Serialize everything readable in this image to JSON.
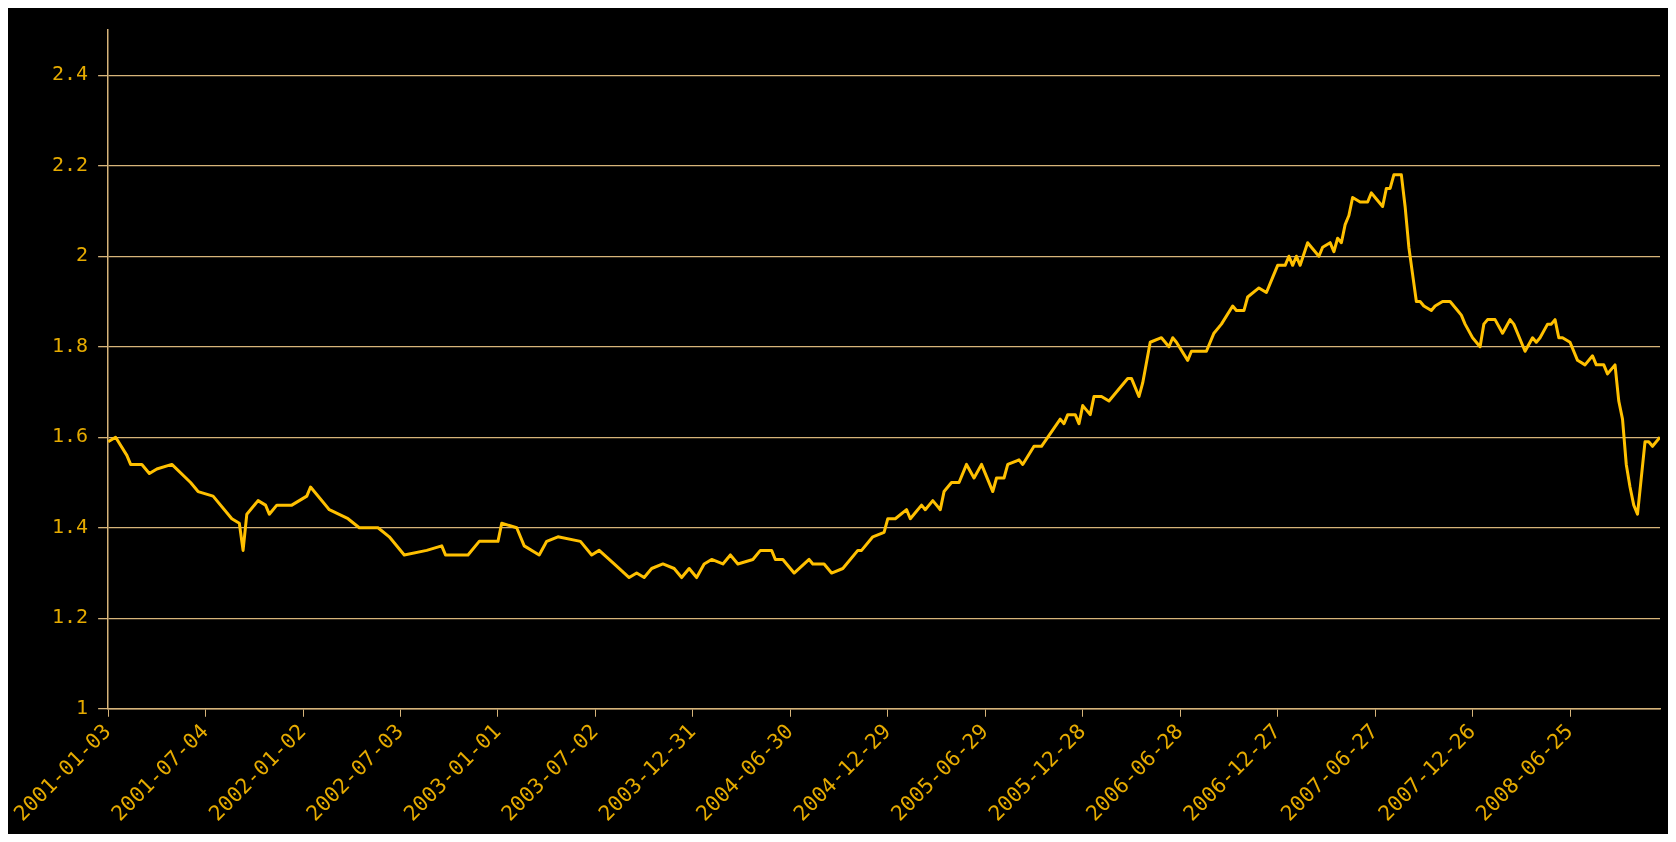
{
  "chart_data": {
    "type": "line",
    "x": [
      "2001-01-03",
      "2001-01-17",
      "2001-02-07",
      "2001-02-14",
      "2001-03-07",
      "2001-03-21",
      "2001-04-04",
      "2001-05-02",
      "2001-06-06",
      "2001-06-20",
      "2001-07-18",
      "2001-08-22",
      "2001-09-05",
      "2001-09-12",
      "2001-09-19",
      "2001-10-10",
      "2001-10-24",
      "2001-10-31",
      "2001-11-14",
      "2001-12-12",
      "2002-01-09",
      "2002-01-16",
      "2002-02-20",
      "2002-03-27",
      "2002-04-17",
      "2002-05-22",
      "2002-06-12",
      "2002-07-10",
      "2002-08-21",
      "2002-09-18",
      "2002-09-25",
      "2002-11-06",
      "2002-11-27",
      "2003-01-01",
      "2003-01-08",
      "2003-02-05",
      "2003-02-19",
      "2003-03-19",
      "2003-04-02",
      "2003-04-23",
      "2003-06-04",
      "2003-06-25",
      "2003-07-09",
      "2003-08-06",
      "2003-09-03",
      "2003-09-17",
      "2003-10-01",
      "2003-10-15",
      "2003-11-05",
      "2003-11-26",
      "2003-12-10",
      "2003-12-24",
      "2004-01-07",
      "2004-01-21",
      "2004-02-04",
      "2004-02-25",
      "2004-03-10",
      "2004-03-24",
      "2004-04-21",
      "2004-05-05",
      "2004-05-26",
      "2004-06-02",
      "2004-06-16",
      "2004-07-07",
      "2004-08-04",
      "2004-08-11",
      "2004-09-01",
      "2004-09-15",
      "2004-10-06",
      "2004-11-03",
      "2004-11-10",
      "2004-12-01",
      "2004-12-22",
      "2004-12-29",
      "2005-01-12",
      "2005-02-02",
      "2005-02-09",
      "2005-03-02",
      "2005-03-09",
      "2005-03-23",
      "2005-04-06",
      "2005-04-13",
      "2005-04-27",
      "2005-05-11",
      "2005-05-25",
      "2005-06-08",
      "2005-06-22",
      "2005-07-13",
      "2005-07-20",
      "2005-08-03",
      "2005-08-10",
      "2005-08-31",
      "2005-09-07",
      "2005-09-28",
      "2005-10-12",
      "2005-11-16",
      "2005-11-23",
      "2005-11-30",
      "2005-12-14",
      "2005-12-21",
      "2005-12-28",
      "2006-01-11",
      "2006-01-18",
      "2006-02-01",
      "2006-02-15",
      "2006-03-01",
      "2006-03-22",
      "2006-03-29",
      "2006-04-12",
      "2006-04-19",
      "2006-05-03",
      "2006-05-24",
      "2006-06-07",
      "2006-06-14",
      "2006-06-21",
      "2006-07-12",
      "2006-07-19",
      "2006-08-16",
      "2006-08-30",
      "2006-09-13",
      "2006-10-04",
      "2006-10-11",
      "2006-10-25",
      "2006-11-01",
      "2006-11-22",
      "2006-12-06",
      "2006-12-27",
      "2007-01-10",
      "2007-01-17",
      "2007-01-24",
      "2007-01-31",
      "2007-02-07",
      "2007-02-21",
      "2007-03-07",
      "2007-03-14",
      "2007-03-21",
      "2007-04-04",
      "2007-04-11",
      "2007-04-18",
      "2007-04-25",
      "2007-05-02",
      "2007-05-09",
      "2007-05-16",
      "2007-05-30",
      "2007-06-06",
      "2007-06-13",
      "2007-06-20",
      "2007-06-27",
      "2007-07-11",
      "2007-07-18",
      "2007-07-25",
      "2007-08-01",
      "2007-08-15",
      "2007-08-22",
      "2007-08-29",
      "2007-09-05",
      "2007-09-12",
      "2007-09-19",
      "2007-09-26",
      "2007-10-10",
      "2007-10-17",
      "2007-10-31",
      "2007-11-14",
      "2007-11-28",
      "2007-12-05",
      "2007-12-12",
      "2007-12-26",
      "2008-01-09",
      "2008-01-16",
      "2008-01-23",
      "2008-02-06",
      "2008-02-20",
      "2008-03-05",
      "2008-03-12",
      "2008-04-02",
      "2008-04-16",
      "2008-04-23",
      "2008-04-30",
      "2008-05-14",
      "2008-05-21",
      "2008-05-28",
      "2008-06-04",
      "2008-06-11",
      "2008-06-25",
      "2008-07-09",
      "2008-07-23",
      "2008-08-06",
      "2008-08-13",
      "2008-08-27",
      "2008-09-03",
      "2008-09-17",
      "2008-09-24",
      "2008-10-01",
      "2008-10-08",
      "2008-10-15",
      "2008-10-22",
      "2008-10-29",
      "2008-11-12",
      "2008-11-19",
      "2008-11-26",
      "2008-12-10"
    ],
    "series": [
      {
        "color": "#ffc000",
        "values": [
          1.59,
          1.6,
          1.56,
          1.54,
          1.54,
          1.52,
          1.53,
          1.54,
          1.5,
          1.48,
          1.47,
          1.42,
          1.41,
          1.35,
          1.43,
          1.46,
          1.45,
          1.43,
          1.45,
          1.45,
          1.47,
          1.49,
          1.44,
          1.42,
          1.4,
          1.4,
          1.38,
          1.34,
          1.35,
          1.36,
          1.34,
          1.34,
          1.37,
          1.37,
          1.41,
          1.4,
          1.36,
          1.34,
          1.37,
          1.38,
          1.37,
          1.34,
          1.35,
          1.32,
          1.29,
          1.3,
          1.29,
          1.31,
          1.32,
          1.31,
          1.29,
          1.31,
          1.29,
          1.32,
          1.33,
          1.32,
          1.34,
          1.32,
          1.33,
          1.35,
          1.35,
          1.33,
          1.33,
          1.3,
          1.33,
          1.32,
          1.32,
          1.3,
          1.31,
          1.35,
          1.35,
          1.38,
          1.39,
          1.42,
          1.42,
          1.44,
          1.42,
          1.45,
          1.44,
          1.46,
          1.44,
          1.48,
          1.5,
          1.5,
          1.54,
          1.51,
          1.54,
          1.48,
          1.51,
          1.51,
          1.54,
          1.55,
          1.54,
          1.58,
          1.58,
          1.64,
          1.63,
          1.65,
          1.65,
          1.63,
          1.67,
          1.65,
          1.69,
          1.69,
          1.68,
          1.7,
          1.73,
          1.73,
          1.69,
          1.72,
          1.81,
          1.82,
          1.8,
          1.82,
          1.81,
          1.77,
          1.79,
          1.79,
          1.83,
          1.85,
          1.89,
          1.88,
          1.88,
          1.91,
          1.93,
          1.92,
          1.98,
          1.98,
          2.0,
          1.98,
          2.0,
          1.98,
          2.03,
          2.01,
          2.0,
          2.02,
          2.03,
          2.01,
          2.04,
          2.03,
          2.07,
          2.09,
          2.13,
          2.12,
          2.12,
          2.12,
          2.14,
          2.13,
          2.11,
          2.15,
          2.15,
          2.18,
          2.18,
          2.11,
          2.02,
          1.96,
          1.9,
          1.9,
          1.89,
          1.88,
          1.89,
          1.9,
          1.9,
          1.88,
          1.87,
          1.85,
          1.82,
          1.8,
          1.85,
          1.86,
          1.86,
          1.83,
          1.86,
          1.85,
          1.79,
          1.82,
          1.81,
          1.82,
          1.85,
          1.85,
          1.86,
          1.82,
          1.82,
          1.81,
          1.77,
          1.76,
          1.78,
          1.76,
          1.76,
          1.74,
          1.76,
          1.68,
          1.64,
          1.54,
          1.49,
          1.45,
          1.43,
          1.59,
          1.59,
          1.58,
          1.6
        ]
      }
    ],
    "xlim": [
      "2001-01-03",
      "2008-12-10"
    ],
    "xticks": [
      "2001-01-03",
      "2001-07-04",
      "2002-01-02",
      "2002-07-03",
      "2003-01-01",
      "2003-07-02",
      "2003-12-31",
      "2004-06-30",
      "2004-12-29",
      "2005-06-29",
      "2005-12-28",
      "2006-06-28",
      "2006-12-27",
      "2007-06-27",
      "2007-12-26",
      "2008-06-25"
    ],
    "ylim": [
      1,
      2.5
    ],
    "yticks": [
      1,
      1.2,
      1.4,
      1.6,
      1.8,
      2,
      2.2,
      2.4
    ],
    "grid": "y",
    "legend": false,
    "marker": "none",
    "line_style": "solid"
  }
}
